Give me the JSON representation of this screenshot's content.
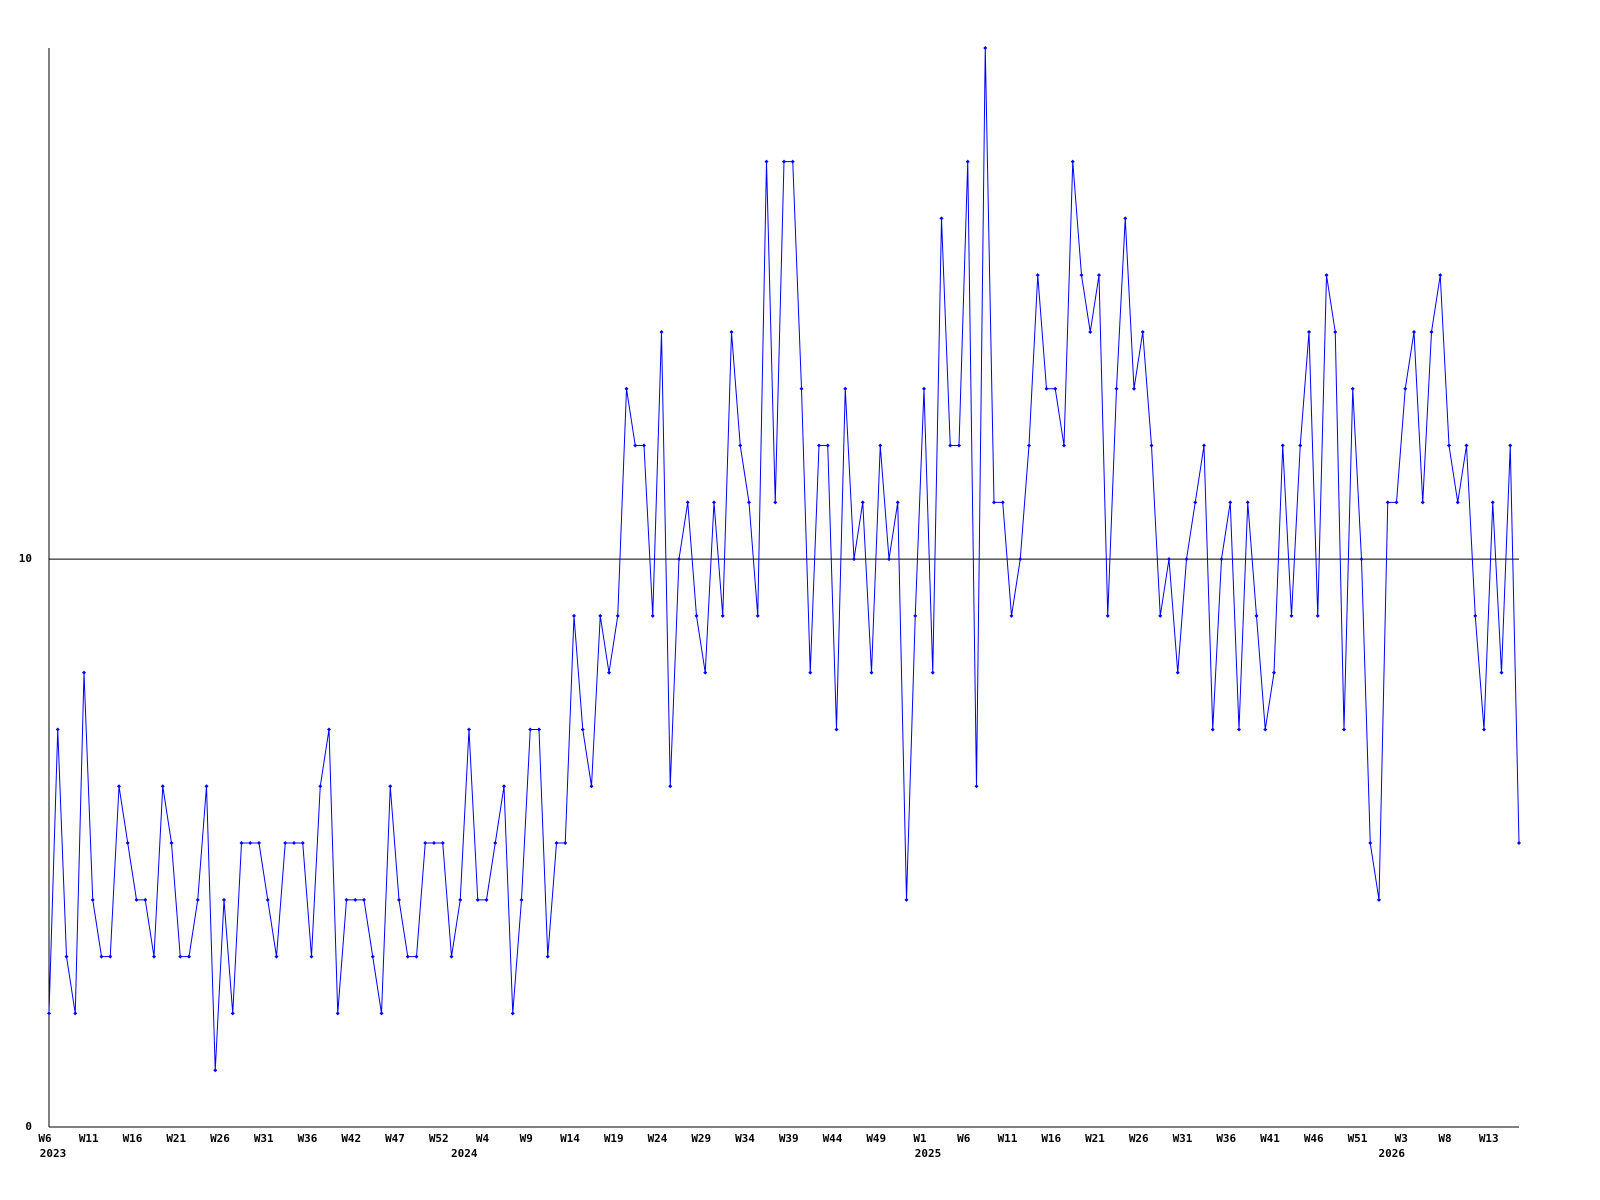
{
  "chart_data": {
    "type": "line",
    "categories": [
      "W6",
      null,
      null,
      null,
      null,
      "W11",
      null,
      null,
      null,
      null,
      "W16",
      null,
      null,
      null,
      null,
      "W21",
      null,
      null,
      null,
      null,
      "W26",
      null,
      null,
      null,
      null,
      "W31",
      null,
      null,
      null,
      null,
      "W36",
      null,
      null,
      null,
      null,
      "W42",
      null,
      null,
      null,
      null,
      "W47",
      null,
      null,
      null,
      null,
      "W52",
      null,
      null,
      null,
      null,
      "W4",
      null,
      null,
      null,
      null,
      "W9",
      null,
      null,
      null,
      null,
      "W14",
      null,
      null,
      null,
      null,
      "W19",
      null,
      null,
      null,
      null,
      "W24",
      null,
      null,
      null,
      null,
      "W29",
      null,
      null,
      null,
      null,
      "W34",
      null,
      null,
      null,
      null,
      "W39",
      null,
      null,
      null,
      null,
      "W44",
      null,
      null,
      null,
      null,
      "W49",
      null,
      null,
      null,
      null,
      "W1",
      null,
      null,
      null,
      null,
      "W6",
      null,
      null,
      null,
      null,
      "W11",
      null,
      null,
      null,
      null,
      "W16",
      null,
      null,
      null,
      null,
      "W21",
      null,
      null,
      null,
      null,
      "W26",
      null,
      null,
      null,
      null,
      "W31",
      null,
      null,
      null,
      null,
      "W36",
      null,
      null,
      null,
      null,
      "W41",
      null,
      null,
      null,
      null,
      "W46",
      null,
      null,
      null,
      null,
      "W51",
      null,
      null,
      null,
      null,
      "W3",
      null,
      null,
      null,
      null,
      "W8",
      null,
      null,
      null,
      null,
      "W13",
      null,
      null,
      null
    ],
    "year_categories": [
      "2023",
      null,
      null,
      null,
      null,
      null,
      null,
      null,
      null,
      null,
      null,
      null,
      null,
      null,
      null,
      null,
      null,
      null,
      null,
      null,
      null,
      null,
      null,
      null,
      null,
      null,
      null,
      null,
      null,
      null,
      null,
      null,
      null,
      null,
      null,
      null,
      null,
      null,
      null,
      null,
      null,
      null,
      null,
      null,
      null,
      null,
      null,
      "2024",
      null,
      null,
      null,
      null,
      null,
      null,
      null,
      null,
      null,
      null,
      null,
      null,
      null,
      null,
      null,
      null,
      null,
      null,
      null,
      null,
      null,
      null,
      null,
      null,
      null,
      null,
      null,
      null,
      null,
      null,
      null,
      null,
      null,
      null,
      null,
      null,
      null,
      null,
      null,
      null,
      null,
      null,
      null,
      null,
      null,
      null,
      null,
      null,
      null,
      null,
      null,
      null,
      "2025",
      null,
      null,
      null,
      null,
      null,
      null,
      null,
      null,
      null,
      null,
      null,
      null,
      null,
      null,
      null,
      null,
      null,
      null,
      null,
      null,
      null,
      null,
      null,
      null,
      null,
      null,
      null,
      null,
      null,
      null,
      null,
      null,
      null,
      null,
      null,
      null,
      null,
      null,
      null,
      null,
      null,
      null,
      null,
      null,
      null,
      null,
      null,
      null,
      null,
      null,
      null,
      null,
      "2026",
      null,
      null,
      null,
      null,
      null,
      null,
      null,
      null,
      null,
      null,
      null,
      null,
      null,
      null,
      null
    ],
    "values": [
      2,
      7,
      3,
      2,
      8,
      4,
      3,
      3,
      6,
      5,
      4,
      4,
      3,
      6,
      5,
      3,
      3,
      4,
      6,
      1,
      4,
      2,
      5,
      5,
      5,
      4,
      3,
      5,
      5,
      5,
      3,
      6,
      7,
      2,
      4,
      4,
      4,
      3,
      2,
      6,
      4,
      3,
      3,
      5,
      5,
      5,
      3,
      4,
      7,
      4,
      4,
      5,
      6,
      2,
      4,
      7,
      7,
      3,
      5,
      5,
      9,
      7,
      6,
      9,
      8,
      9,
      13,
      12,
      12,
      9,
      14,
      6,
      10,
      11,
      9,
      8,
      11,
      9,
      14,
      12,
      11,
      9,
      17,
      11,
      17,
      17,
      13,
      8,
      12,
      12,
      7,
      13,
      10,
      11,
      8,
      12,
      10,
      11,
      4,
      9,
      13,
      8,
      16,
      12,
      12,
      17,
      6,
      19,
      11,
      11,
      9,
      10,
      12,
      15,
      13,
      13,
      12,
      17,
      15,
      14,
      15,
      9,
      13,
      16,
      13,
      14,
      12,
      9,
      10,
      8,
      10,
      11,
      12,
      7,
      10,
      11,
      7,
      11,
      9,
      7,
      8,
      12,
      9,
      12,
      14,
      9,
      15,
      14,
      7,
      13,
      10,
      5,
      4,
      11,
      11,
      13,
      14,
      11,
      14,
      15,
      12,
      11,
      12,
      9,
      7,
      11,
      8,
      12,
      5
    ],
    "color": "#0000ff",
    "ylim": [
      0,
      19
    ],
    "yticks": [
      0,
      10
    ],
    "grid": true
  }
}
